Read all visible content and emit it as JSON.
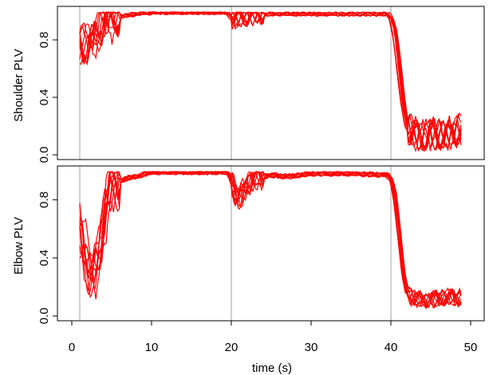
{
  "chart_data": {
    "type": "line",
    "shared_x_axis": {
      "label": "time (s)",
      "range": [
        0,
        50
      ],
      "ticks": [
        0,
        10,
        20,
        30,
        40,
        50
      ]
    },
    "phase_boundaries_s": [
      1,
      20,
      40
    ],
    "colors": {
      "series": "#ff0000",
      "phase_line": "#a0a0a0",
      "axes": "#000000"
    },
    "grid": false,
    "legend": "none",
    "panels": [
      {
        "ylabel": "Shoulder PLV",
        "ylim": [
          0,
          1
        ],
        "yticks": [
          0.0,
          0.4,
          0.8
        ],
        "ytick_labels": [
          "0.0",
          "0.4",
          "0.8"
        ],
        "trial_count": 10,
        "typical_trace": {
          "x": [
            1,
            1.5,
            2,
            2.5,
            3,
            3.5,
            4,
            5,
            6,
            8,
            10,
            15,
            19.5,
            20,
            20.5,
            21,
            22,
            25,
            30,
            35,
            39.5,
            40,
            40.5,
            41,
            41.5,
            42,
            43,
            44,
            45,
            46,
            47,
            48,
            48.8
          ],
          "y": [
            0.78,
            0.76,
            0.77,
            0.79,
            0.83,
            0.9,
            0.94,
            0.95,
            0.96,
            0.98,
            0.99,
            0.99,
            0.99,
            0.96,
            0.94,
            0.95,
            0.97,
            0.98,
            0.98,
            0.98,
            0.98,
            0.96,
            0.85,
            0.62,
            0.38,
            0.2,
            0.14,
            0.12,
            0.15,
            0.13,
            0.14,
            0.16,
            0.18
          ]
        },
        "trace_spread": 0.05,
        "late_spread": 0.1
      },
      {
        "ylabel": "Elbow PLV",
        "ylim": [
          0,
          1
        ],
        "yticks": [
          0.0,
          0.4,
          0.8
        ],
        "ytick_labels": [
          "0.0",
          "0.4",
          "0.8"
        ],
        "trial_count": 10,
        "typical_trace": {
          "x": [
            1,
            1.5,
            2,
            2.5,
            3,
            3.5,
            4,
            4.5,
            5,
            6,
            7,
            8,
            10,
            15,
            19.5,
            20,
            20.5,
            21,
            21.5,
            22,
            23,
            25,
            27,
            30,
            35,
            39.5,
            40,
            40.5,
            41,
            41.5,
            42,
            43,
            44,
            45,
            46,
            47,
            48,
            48.8
          ],
          "y": [
            0.6,
            0.45,
            0.35,
            0.3,
            0.32,
            0.45,
            0.7,
            0.85,
            0.9,
            0.93,
            0.95,
            0.96,
            0.99,
            0.99,
            0.99,
            0.93,
            0.85,
            0.8,
            0.86,
            0.92,
            0.95,
            0.97,
            0.96,
            0.98,
            0.98,
            0.97,
            0.94,
            0.82,
            0.58,
            0.32,
            0.16,
            0.12,
            0.11,
            0.12,
            0.12,
            0.13,
            0.12,
            0.13
          ]
        },
        "trace_spread": 0.06,
        "late_spread": 0.05
      }
    ]
  }
}
